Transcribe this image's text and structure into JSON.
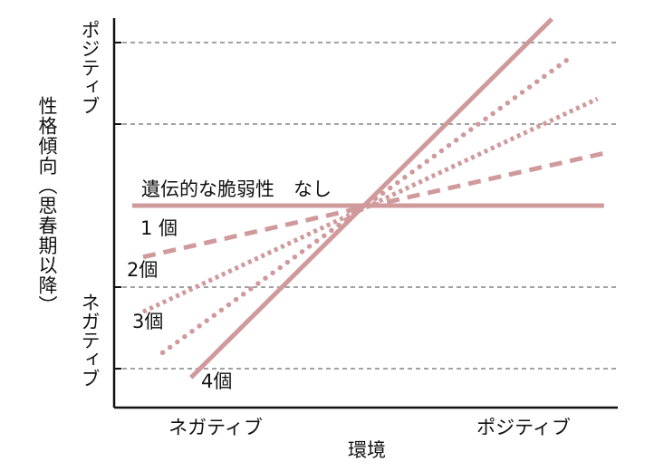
{
  "chart_data": {
    "type": "line",
    "xlabel": "環境",
    "ylabel": "性格傾向（思春期以降）",
    "x_tick_labels": [
      "ネガティブ",
      "ポジティブ"
    ],
    "y_tick_labels": {
      "top": "ポジティブ",
      "bottom": "ネガティブ"
    },
    "x": [
      -1,
      1
    ],
    "xlim": [
      -1.1,
      1.1
    ],
    "ylim": [
      -1.1,
      1.1
    ],
    "grid": "horizontal-dashed",
    "colors": {
      "line": "#d09a9c",
      "axis": "#111111",
      "grid": "#444444"
    },
    "series": [
      {
        "name": "遺伝的な脆弱性　なし",
        "style": "solid-thick",
        "values": [
          0,
          0
        ]
      },
      {
        "name": "1 個",
        "style": "dashed",
        "values": [
          -0.3,
          0.3
        ]
      },
      {
        "name": "2個",
        "style": "dotted-dense",
        "values": [
          -0.62,
          0.63
        ]
      },
      {
        "name": "3個",
        "style": "dotted",
        "values": [
          -0.94,
          0.99
        ]
      },
      {
        "name": "4個",
        "style": "solid",
        "values": [
          -1.28,
          1.37
        ]
      }
    ]
  }
}
